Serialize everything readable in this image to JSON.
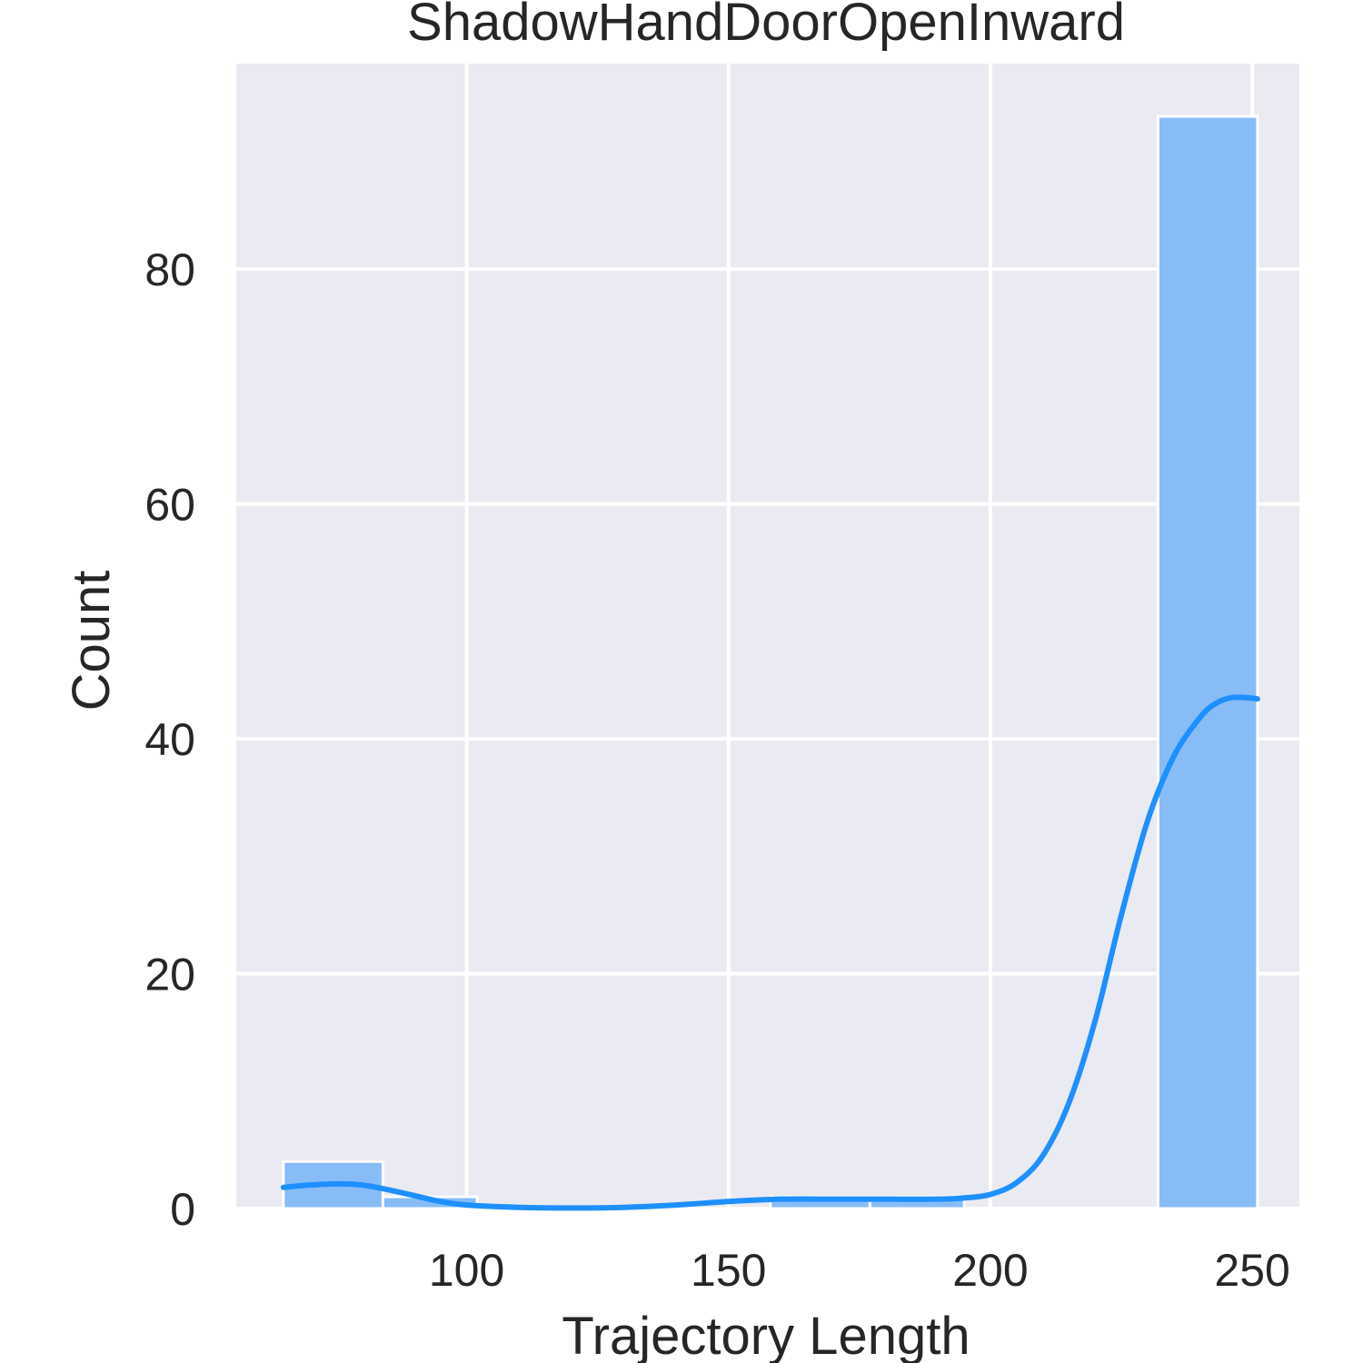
{
  "chart_data": {
    "type": "bar",
    "title": "ShadowHandDoorOpenInward",
    "xlabel": "Trajectory Length",
    "ylabel": "Count",
    "xlim": [
      56,
      259
    ],
    "ylim": [
      0,
      97.5
    ],
    "xticks": [
      100,
      150,
      200,
      250
    ],
    "yticks": [
      0,
      20,
      40,
      60,
      80
    ],
    "grid": true,
    "bins": [
      {
        "x0": 65,
        "x1": 84,
        "count": 4
      },
      {
        "x0": 84,
        "x1": 102,
        "count": 1
      },
      {
        "x0": 102,
        "x1": 121,
        "count": 0
      },
      {
        "x0": 121,
        "x1": 140,
        "count": 0
      },
      {
        "x0": 140,
        "x1": 158,
        "count": 0
      },
      {
        "x0": 158,
        "x1": 177,
        "count": 1
      },
      {
        "x0": 177,
        "x1": 195,
        "count": 1
      },
      {
        "x0": 195,
        "x1": 214,
        "count": 0
      },
      {
        "x0": 214,
        "x1": 232,
        "count": 0
      },
      {
        "x0": 232,
        "x1": 251,
        "count": 93
      }
    ],
    "kde": {
      "x": [
        65,
        70,
        75,
        80,
        85,
        90,
        95,
        100,
        110,
        120,
        130,
        140,
        150,
        160,
        170,
        180,
        190,
        195,
        200,
        205,
        210,
        215,
        220,
        225,
        230,
        235,
        240,
        243,
        246,
        249,
        251
      ],
      "y": [
        1.8,
        2.0,
        2.1,
        2.0,
        1.6,
        1.1,
        0.6,
        0.3,
        0.1,
        0.05,
        0.1,
        0.3,
        0.6,
        0.8,
        0.8,
        0.8,
        0.8,
        0.9,
        1.2,
        2.2,
        4.5,
        9.0,
        16.0,
        25.0,
        33.0,
        38.5,
        41.8,
        43.0,
        43.5,
        43.5,
        43.4
      ]
    },
    "colors": {
      "background": "#eaeaf2",
      "grid": "#ffffff",
      "bar_fill": "#87bcf7",
      "bar_edge": "#ffffff",
      "kde_line": "#1e8fff"
    }
  }
}
